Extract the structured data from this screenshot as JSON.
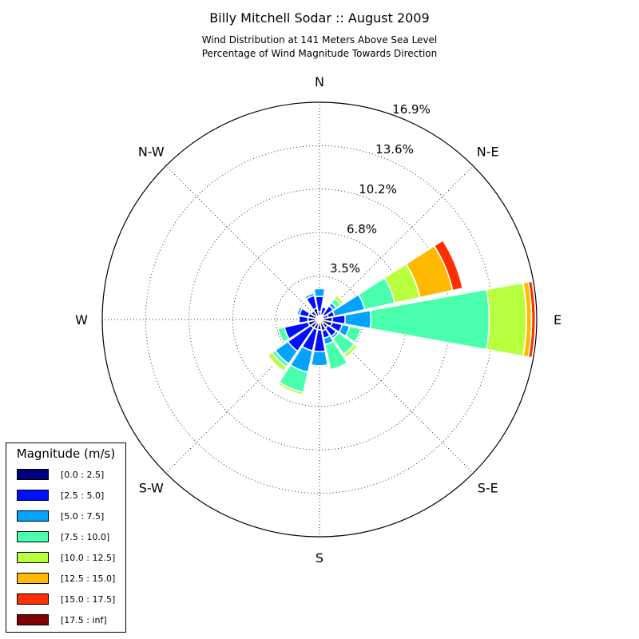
{
  "chart_data": {
    "type": "windrose",
    "title": "Billy Mitchell Sodar :: August 2009",
    "subtitle_lines": [
      "Wind Distribution at 141 Meters Above Sea Level",
      "Percentage of Wind Magnitude Towards Direction"
    ],
    "compass_labels": {
      "N": "N",
      "NE": "N-E",
      "E": "E",
      "SE": "S-E",
      "S": "S",
      "SW": "S-W",
      "W": "W",
      "NW": "N-W"
    },
    "radial_ticks": [
      "3.5%",
      "6.8%",
      "10.2%",
      "13.6%",
      "16.9%"
    ],
    "radial_max": 16.9,
    "legend_title": "Magnitude (m/s)",
    "bins": [
      {
        "label": "[0.0 : 2.5]",
        "color": "#00007f"
      },
      {
        "label": "[2.5 : 5.0]",
        "color": "#0010ff"
      },
      {
        "label": "[5.0 : 7.5]",
        "color": "#00a4ff"
      },
      {
        "label": "[7.5 : 10.0]",
        "color": "#49ffad"
      },
      {
        "label": "[10.0 : 12.5]",
        "color": "#b7ff3f"
      },
      {
        "label": "[12.5 : 15.0]",
        "color": "#ffb900"
      },
      {
        "label": "[15.0 : 17.5]",
        "color": "#ff3000"
      },
      {
        "label": "[17.5 : inf]",
        "color": "#7f0000"
      }
    ],
    "directions_deg": [
      0,
      22.5,
      45,
      67.5,
      90,
      112.5,
      135,
      157.5,
      180,
      202.5,
      225,
      247.5,
      270,
      292.5,
      315,
      337.5
    ],
    "cumulative_percent": [
      [
        0.6,
        1.8,
        2.4,
        2.4,
        2.4,
        2.4,
        2.4,
        2.4
      ],
      [
        0.4,
        1.0,
        1.0,
        1.0,
        1.0,
        1.0,
        1.0,
        1.0
      ],
      [
        0.4,
        1.3,
        1.6,
        2.0,
        2.3,
        2.4,
        2.4,
        2.4
      ],
      [
        0.7,
        1.2,
        3.6,
        6.0,
        8.0,
        10.6,
        11.4,
        11.4
      ],
      [
        1.0,
        2.0,
        4.0,
        13.2,
        16.1,
        16.5,
        16.8,
        16.9
      ],
      [
        1.0,
        1.8,
        2.4,
        3.3,
        3.3,
        3.3,
        3.3,
        3.3
      ],
      [
        0.8,
        1.6,
        1.8,
        3.3,
        3.6,
        3.7,
        3.7,
        3.7
      ],
      [
        0.9,
        1.5,
        2.0,
        4.0,
        4.0,
        4.0,
        4.0,
        4.0
      ],
      [
        0.8,
        2.5,
        3.6,
        3.7,
        3.7,
        3.7,
        3.7,
        3.7
      ],
      [
        0.8,
        2.5,
        4.2,
        5.8,
        6.0,
        6.0,
        6.0,
        6.0
      ],
      [
        0.8,
        3.0,
        4.2,
        4.5,
        4.9,
        5.0,
        5.0,
        5.0
      ],
      [
        0.9,
        2.8,
        2.8,
        3.3,
        3.3,
        3.3,
        3.3,
        3.3
      ],
      [
        0.9,
        1.6,
        1.6,
        1.6,
        1.6,
        1.6,
        1.6,
        1.6
      ],
      [
        0.9,
        1.6,
        1.8,
        1.8,
        1.8,
        1.8,
        1.8,
        1.8
      ],
      [
        0.3,
        0.8,
        0.8,
        0.8,
        0.8,
        0.8,
        0.8,
        0.8
      ],
      [
        0.9,
        1.9,
        2.1,
        2.2,
        2.3,
        2.3,
        2.3,
        2.3
      ]
    ]
  }
}
